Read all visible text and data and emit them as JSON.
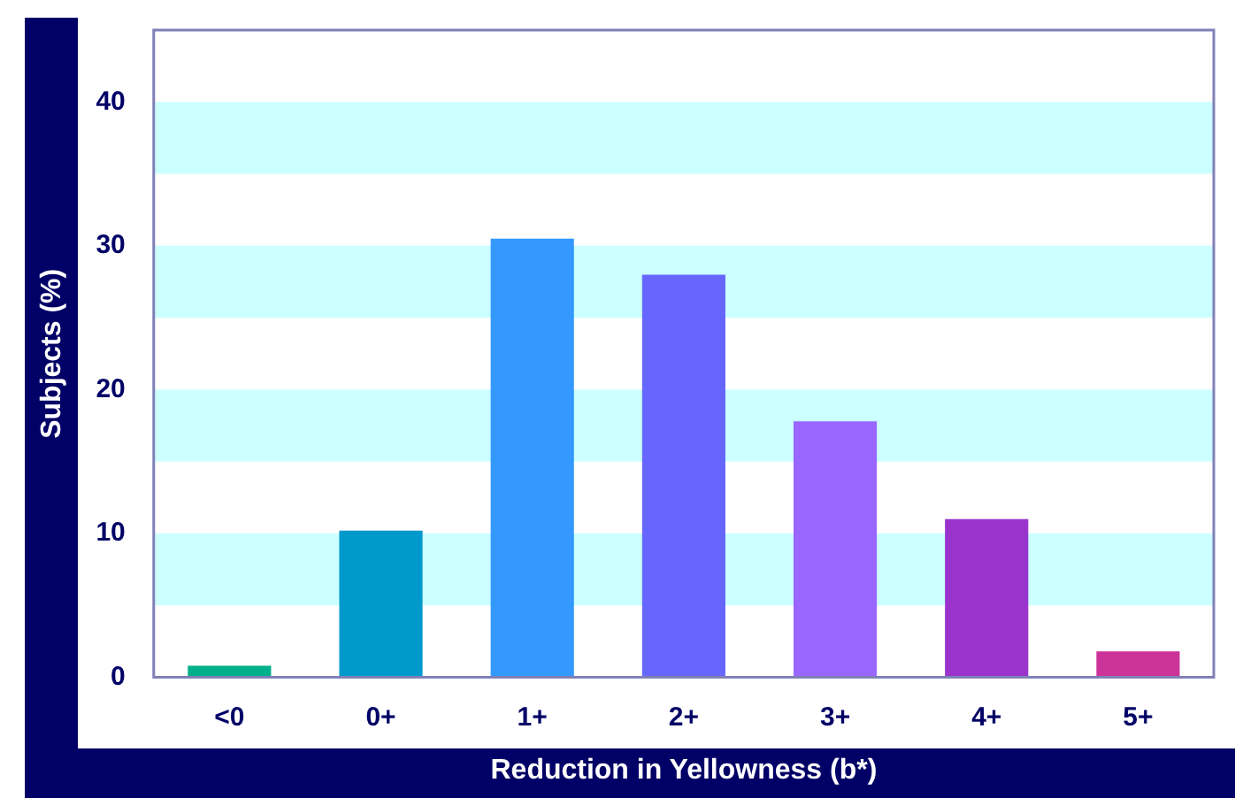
{
  "chart_data": {
    "type": "bar",
    "xlabel": "Reduction in Yellowness (b*)",
    "ylabel": "Subjects (%)",
    "categories": [
      "<0",
      "0+",
      "1+",
      "2+",
      "3+",
      "4+",
      "5+"
    ],
    "values": [
      0.8,
      10.2,
      30.5,
      28,
      17.8,
      11,
      1.8
    ],
    "colors": [
      "#00b08a",
      "#0099cc",
      "#3399ff",
      "#6666ff",
      "#9966ff",
      "#9933cc",
      "#cc3399"
    ],
    "ylim": [
      0,
      45
    ],
    "yticks": [
      0,
      10,
      20,
      30,
      40
    ],
    "bands": [
      {
        "axis": "y",
        "from": 5,
        "to": 10,
        "color": "#ccffff"
      },
      {
        "axis": "y",
        "from": 15,
        "to": 20,
        "color": "#ccffff"
      },
      {
        "axis": "y",
        "from": 25,
        "to": 30,
        "color": "#ccffff"
      },
      {
        "axis": "y",
        "from": 35,
        "to": 40,
        "color": "#ccffff"
      }
    ]
  }
}
